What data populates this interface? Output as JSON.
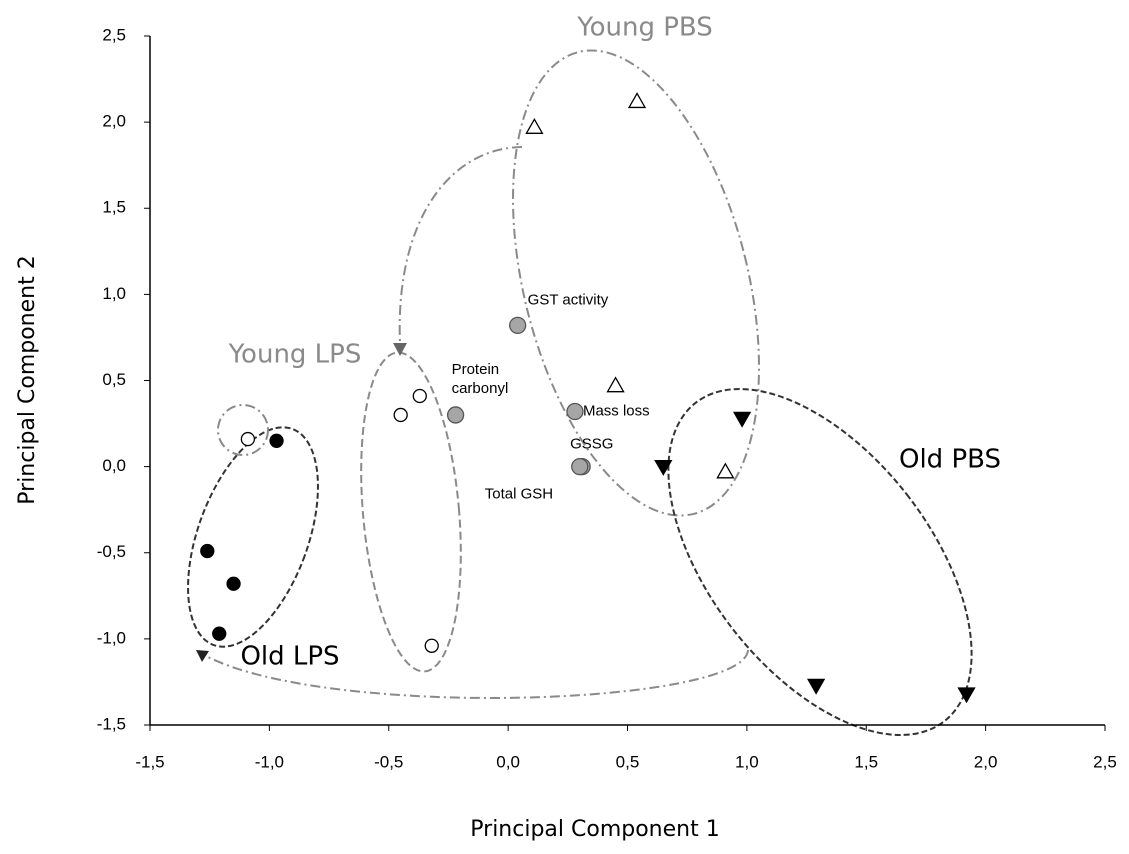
{
  "chart_data": {
    "type": "scatter",
    "x_label": "Principal Component 1",
    "y_label": "Principal Component 2",
    "xlim": [
      -1.5,
      2.5
    ],
    "ylim": [
      -1.5,
      2.5
    ],
    "xticks": [
      {
        "value": -1.5,
        "label": "-1,5"
      },
      {
        "value": -1.0,
        "label": "-1,0"
      },
      {
        "value": -0.5,
        "label": "-0,5"
      },
      {
        "value": 0,
        "label": "0,0"
      },
      {
        "value": 0.5,
        "label": "0,5"
      },
      {
        "value": 1.0,
        "label": "1,0"
      },
      {
        "value": 1.5,
        "label": "1,5"
      },
      {
        "value": 2.0,
        "label": "2,0"
      },
      {
        "value": 2.5,
        "label": "2,5"
      }
    ],
    "yticks": [
      {
        "value": -1.5,
        "label": "-1,5"
      },
      {
        "value": -1.0,
        "label": "-1,0"
      },
      {
        "value": -0.5,
        "label": "-0,5"
      },
      {
        "value": 0,
        "label": "0,0"
      },
      {
        "value": 0.5,
        "label": "0,5"
      },
      {
        "value": 1.0,
        "label": "1,0"
      },
      {
        "value": 1.5,
        "label": "1,5"
      },
      {
        "value": 2.0,
        "label": "2,0"
      },
      {
        "value": 2.5,
        "label": "2,5"
      }
    ],
    "series": [
      {
        "name": "Young PBS",
        "marker": "triangle-up",
        "color": "#ffffff",
        "label_color": "#8a8a8a",
        "x": [
          0.11,
          0.54,
          0.45,
          0.91
        ],
        "y": [
          1.97,
          2.12,
          0.47,
          -0.03
        ]
      },
      {
        "name": "Old PBS",
        "marker": "triangle-down",
        "color": "#000000",
        "label_color": "#000000",
        "x": [
          0.98,
          0.65,
          1.29,
          1.92
        ],
        "y": [
          0.28,
          0.0,
          -1.27,
          -1.32
        ]
      },
      {
        "name": "Young LPS",
        "marker": "circle",
        "color": "#ffffff",
        "label_color": "#8a8a8a",
        "x": [
          -0.45,
          -0.37,
          -0.32,
          -1.09
        ],
        "y": [
          0.3,
          0.41,
          -1.04,
          0.16
        ]
      },
      {
        "name": "Old LPS",
        "marker": "circle",
        "color": "#000000",
        "label_color": "#000000",
        "x": [
          -0.97,
          -1.26,
          -1.15,
          -1.21
        ],
        "y": [
          0.15,
          -0.49,
          -0.68,
          -0.97
        ]
      }
    ],
    "loadings": {
      "color": "#a6a6a6",
      "points": [
        {
          "label_lines": [
            "GST activity"
          ],
          "x": 0.04,
          "y": 0.82
        },
        {
          "label_lines": [
            "Protein",
            "carbonyl"
          ],
          "x": -0.22,
          "y": 0.3
        },
        {
          "label_lines": [
            "Mass loss"
          ],
          "x": 0.28,
          "y": 0.32
        },
        {
          "label_lines": [
            "GSSG"
          ],
          "x": 0.31,
          "y": 0.0
        },
        {
          "label_lines": [
            "Total GSH"
          ],
          "x": 0.3,
          "y": 0.0
        }
      ]
    }
  }
}
